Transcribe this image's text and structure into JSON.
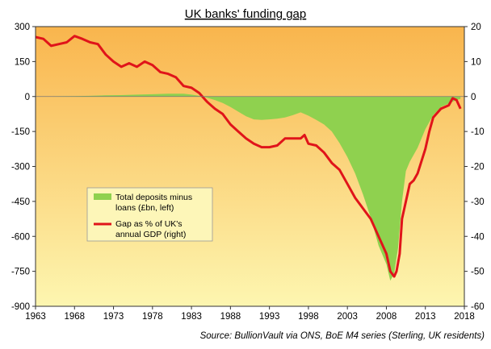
{
  "chart_data": {
    "type": "area",
    "title": "UK banks' funding gap",
    "source": "Source: BullionVault via ONS, BoE M4 series (Sterling, UK residents)",
    "x_ticks": [
      "1963",
      "1968",
      "1973",
      "1978",
      "1983",
      "1988",
      "1993",
      "1998",
      "2003",
      "2008",
      "2013",
      "2018"
    ],
    "xlim": [
      1963,
      2018
    ],
    "y_left": {
      "ticks": [
        "300",
        "150",
        "0",
        "-150",
        "-300",
        "-450",
        "-600",
        "-750",
        "-900"
      ],
      "ylim": [
        -900,
        300
      ]
    },
    "y_right": {
      "ticks": [
        "20",
        "10",
        "0",
        "-10",
        "-20",
        "-30",
        "-40",
        "-50",
        "-60"
      ],
      "ylim": [
        -60,
        20
      ]
    },
    "background_gradient": [
      "#f9b54d",
      "#fdf6b0"
    ],
    "series": [
      {
        "name": "Total deposits minus loans (£bn, left)",
        "axis": "left",
        "color": "#8fd14f",
        "x": [
          1963,
          1965,
          1968,
          1970,
          1972,
          1974,
          1976,
          1978,
          1980,
          1982,
          1983,
          1984,
          1985,
          1986,
          1987,
          1988,
          1989,
          1990,
          1991,
          1992,
          1993,
          1994,
          1995,
          1996,
          1997,
          1998,
          1999,
          2000,
          2001,
          2002,
          2003,
          2004,
          2005,
          2006,
          2007,
          2008,
          2008.5,
          2009,
          2009.5,
          2010,
          2010.5,
          2011,
          2012,
          2013,
          2014,
          2015,
          2016,
          2017,
          2017.5
        ],
        "values": [
          0,
          1,
          2,
          3,
          5,
          6,
          8,
          10,
          12,
          12,
          8,
          3,
          -5,
          -15,
          -28,
          -45,
          -65,
          -85,
          -98,
          -100,
          -98,
          -95,
          -90,
          -80,
          -68,
          -82,
          -100,
          -120,
          -150,
          -200,
          -260,
          -330,
          -420,
          -520,
          -640,
          -720,
          -790,
          -760,
          -650,
          -450,
          -320,
          -280,
          -220,
          -140,
          -80,
          -45,
          -30,
          -15,
          -10
        ]
      },
      {
        "name": "Gap as % of UK's annual GDP (right)",
        "axis": "right",
        "color": "#e0141a",
        "x": [
          1963,
          1964,
          1965,
          1966,
          1967,
          1968,
          1969,
          1970,
          1971,
          1972,
          1973,
          1974,
          1975,
          1976,
          1977,
          1978,
          1979,
          1980,
          1981,
          1982,
          1983,
          1984,
          1985,
          1986,
          1987,
          1988,
          1989,
          1990,
          1991,
          1992,
          1993,
          1994,
          1995,
          1996,
          1997,
          1997.5,
          1998,
          1999,
          2000,
          2001,
          2002,
          2003,
          2004,
          2005,
          2006,
          2007,
          2008,
          2008.5,
          2009,
          2009.3,
          2009.7,
          2010,
          2010.5,
          2011,
          2011.5,
          2012,
          2013,
          2013.5,
          2014,
          2015,
          2016,
          2016.5,
          2017,
          2017.5
        ],
        "values": [
          17,
          16.5,
          14.5,
          15,
          15.5,
          17.3,
          16.5,
          15.5,
          15,
          12,
          10,
          8.5,
          9.5,
          8.5,
          10,
          9,
          7,
          6.5,
          5.5,
          3,
          2.5,
          1,
          -1.5,
          -3.5,
          -5,
          -8,
          -10,
          -12,
          -13.5,
          -14.5,
          -14.5,
          -14,
          -12,
          -12,
          -12,
          -11,
          -13.5,
          -14,
          -16,
          -19,
          -21,
          -25,
          -29,
          -32,
          -35,
          -40,
          -45,
          -50,
          -51.5,
          -50,
          -45,
          -35,
          -30,
          -25,
          -24,
          -22,
          -15,
          -10,
          -6,
          -3.5,
          -2.5,
          -0.5,
          -1,
          -3.5
        ]
      }
    ],
    "legend": {
      "items": [
        {
          "label": "Total deposits minus loans (£bn, left)",
          "color": "#8fd14f"
        },
        {
          "label": "Gap as % of UK's annual GDP (right)",
          "color": "#e0141a"
        }
      ]
    }
  }
}
